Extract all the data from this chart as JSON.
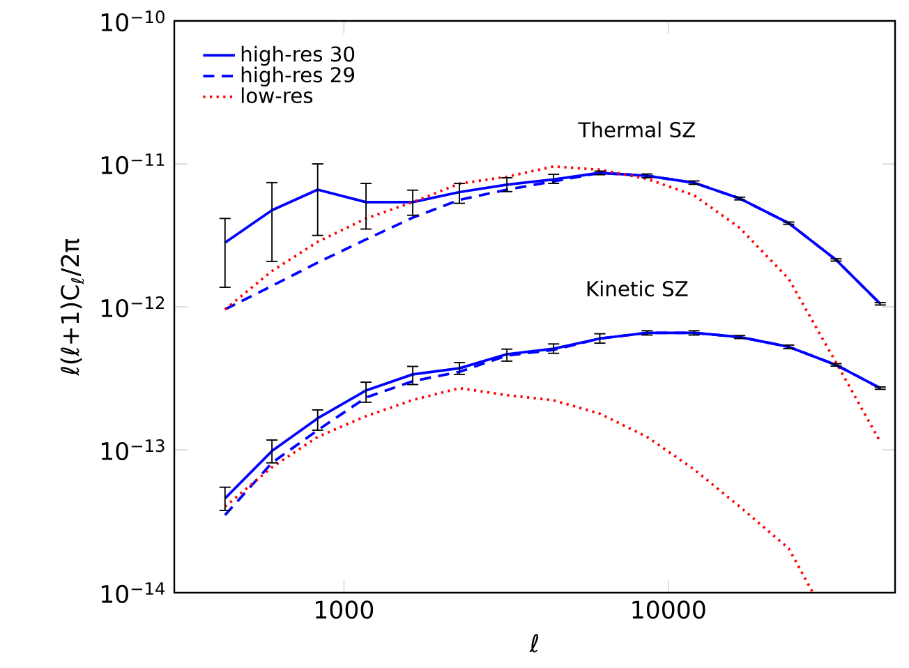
{
  "chart_data": {
    "type": "line",
    "xlabel": "ℓ",
    "ylabel": "ℓ(ℓ+1)C$_{ℓ}$/2π",
    "log": "xy",
    "legend": "top left",
    "grid": false,
    "xlim": [
      300,
      50000
    ],
    "xticks": [
      1000,
      10000
    ],
    "ylim": [
      1e-14,
      1e-10
    ],
    "yticks": [
      {
        "value": 1e-14,
        "label": "10$^{−14}$"
      },
      {
        "value": 1e-13,
        "label": "10$^{−13}$"
      },
      {
        "value": 1e-12,
        "label": "10$^{−12}$"
      },
      {
        "value": 1e-11,
        "label": "10$^{−11}$"
      },
      {
        "value": 1e-10,
        "label": "10$^{−10}$"
      }
    ],
    "x": [
      430,
      600,
      830,
      1170,
      1630,
      2270,
      3180,
      4430,
      6150,
      8600,
      12000,
      16600,
      23500,
      32900,
      45000
    ],
    "annotations": [
      "Thermal SZ",
      "Kinetic SZ"
    ],
    "series": [
      {
        "name": "high-res 30",
        "color": "#0000ff",
        "line_style": "solid",
        "values": [
          2.81e-12,
          4.74e-12,
          6.6e-12,
          5.4e-12,
          5.4e-12,
          6.35e-12,
          7.16e-12,
          7.78e-12,
          8.65e-12,
          8.26e-12,
          7.38e-12,
          5.73e-12,
          3.85e-12,
          2.13e-12,
          1.05e-12
        ],
        "errors": [
          [
            1.37e-12,
            4.15e-12
          ],
          [
            2.08e-12,
            7.4e-12
          ],
          [
            3.16e-12,
            1e-11
          ],
          [
            3.5e-12,
            7.3e-12
          ],
          [
            4.37e-12,
            6.55e-12
          ],
          [
            5.3e-12,
            7.3e-12
          ],
          [
            6.4e-12,
            8e-12
          ],
          [
            7.3e-12,
            8.45e-12
          ],
          [
            8.4e-12,
            8.9e-12
          ],
          [
            8e-12,
            8.5e-12
          ],
          [
            7.2e-12,
            7.6e-12
          ],
          [
            5.6e-12,
            5.85e-12
          ],
          [
            3.78e-12,
            3.92e-12
          ],
          [
            2.09e-12,
            2.17e-12
          ],
          [
            1.03e-12,
            1.07e-12
          ]
        ]
      },
      {
        "name": "high-res 29",
        "color": "#0000ff",
        "line_style": "dashed",
        "values": [
          9.6e-13,
          1.4e-12,
          2.04e-12,
          2.96e-12,
          4.21e-12,
          5.6e-12,
          6.6e-12,
          7.55e-12,
          8.65e-12,
          8.26e-12,
          7.38e-12,
          5.73e-12,
          3.85e-12,
          2.13e-12,
          1.05e-12
        ]
      },
      {
        "name": "low-res",
        "color": "#ff0000",
        "line_style": "dotted",
        "values": [
          9.6e-13,
          1.78e-12,
          2.85e-12,
          4.15e-12,
          5.4e-12,
          7.27e-12,
          8.13e-12,
          9.6e-12,
          9.1e-12,
          7.85e-12,
          6.03e-12,
          3.57e-12,
          1.57e-12,
          4.07e-13,
          1.14e-13
        ]
      },
      {
        "color": "#0000ff",
        "line_style": "solid",
        "values": [
          4.57e-14,
          9.8e-14,
          1.66e-13,
          2.6e-13,
          3.37e-13,
          3.72e-13,
          4.66e-13,
          5.09e-13,
          6e-13,
          6.58e-13,
          6.58e-13,
          6.15e-13,
          5.25e-13,
          3.92e-13,
          2.7e-13
        ],
        "errors": [
          [
            3.77e-14,
            5.47e-14
          ],
          [
            8.1e-14,
            1.17e-13
          ],
          [
            1.37e-13,
            1.9e-13
          ],
          [
            2.15e-13,
            2.97e-13
          ],
          [
            2.86e-13,
            3.83e-13
          ],
          [
            3.37e-13,
            4.07e-13
          ],
          [
            4.17e-13,
            5.06e-13
          ],
          [
            4.73e-13,
            5.5e-13
          ],
          [
            5.57e-13,
            6.48e-13
          ],
          [
            6.35e-13,
            6.8e-13
          ],
          [
            6.35e-13,
            6.8e-13
          ],
          [
            6e-13,
            6.3e-13
          ],
          [
            5.1e-13,
            5.4e-13
          ],
          [
            3.85e-13,
            4e-13
          ],
          [
            2.65e-13,
            2.75e-13
          ]
        ]
      },
      {
        "color": "#0000ff",
        "line_style": "dashed",
        "values": [
          3.49e-14,
          8.1e-14,
          1.37e-13,
          2.32e-13,
          3.02e-13,
          3.51e-13,
          4.56e-13,
          5e-13,
          6e-13,
          6.58e-13,
          6.58e-13,
          6.15e-13,
          5.25e-13,
          3.92e-13,
          2.7e-13
        ]
      },
      {
        "color": "#ff0000",
        "line_style": "dotted",
        "x": [
          430,
          600,
          830,
          1170,
          1630,
          2270,
          3180,
          4430,
          6150,
          8600,
          12000,
          16600,
          23500,
          27900
        ],
        "values": [
          4e-14,
          7.55e-14,
          1.23e-13,
          1.72e-13,
          2.23e-13,
          2.7e-13,
          2.41e-13,
          2.22e-13,
          1.79e-13,
          1.23e-13,
          7.3e-14,
          4e-14,
          2.04e-14,
          1e-14
        ]
      }
    ]
  }
}
